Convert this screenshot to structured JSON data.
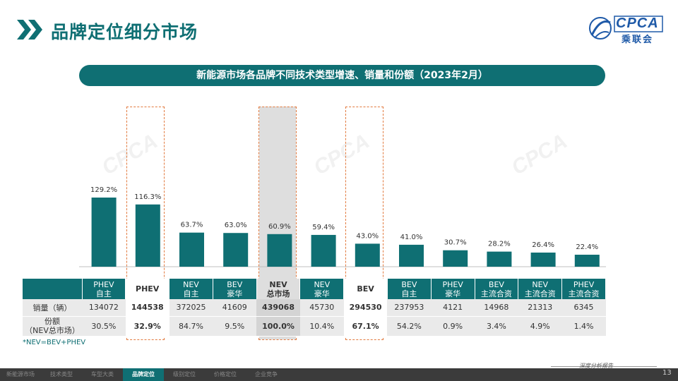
{
  "header": {
    "title": "品牌定位细分市场",
    "logo_text": "CPCA",
    "logo_sub": "乘联会"
  },
  "subtitle": "新能源市场各品牌不同技术类型增速、销量和份额（2023年2月）",
  "colors": {
    "primary": "#0f6f73",
    "highlight_dash": "#e27a3f",
    "highlight_gray": "#dedede",
    "logo_blue": "#1f5aa8"
  },
  "chart_data": {
    "type": "bar",
    "categories": [
      "PHEV自主",
      "PHEV",
      "NEV自主",
      "BEV豪华",
      "NEV总市场",
      "NEV豪华",
      "BEV",
      "BEV自主",
      "PHEV豪华",
      "BEV主流合资",
      "NEV主流合资",
      "PHEV主流合资"
    ],
    "values": [
      129.2,
      116.3,
      63.7,
      63.0,
      60.9,
      59.4,
      43.0,
      41.0,
      30.7,
      28.2,
      26.4,
      22.4
    ],
    "value_labels": [
      "129.2%",
      "116.3%",
      "63.7%",
      "63.0%",
      "60.9%",
      "59.4%",
      "43.0%",
      "41.0%",
      "30.7%",
      "28.2%",
      "26.4%",
      "22.4%"
    ],
    "ylim": [
      0,
      140
    ],
    "title": "",
    "xlabel": "",
    "ylabel": ""
  },
  "table": {
    "columns": [
      {
        "line1": "PHEV",
        "line2": "自主",
        "style": ""
      },
      {
        "line1": "PHEV",
        "line2": "",
        "style": "hl"
      },
      {
        "line1": "NEV",
        "line2": "自主",
        "style": ""
      },
      {
        "line1": "BEV",
        "line2": "豪华",
        "style": ""
      },
      {
        "line1": "NEV",
        "line2": "总市场",
        "style": "hl-gray"
      },
      {
        "line1": "NEV",
        "line2": "豪华",
        "style": ""
      },
      {
        "line1": "BEV",
        "line2": "",
        "style": "hl"
      },
      {
        "line1": "BEV",
        "line2": "自主",
        "style": ""
      },
      {
        "line1": "PHEV",
        "line2": "豪华",
        "style": ""
      },
      {
        "line1": "BEV",
        "line2": "主流合资",
        "style": ""
      },
      {
        "line1": "NEV",
        "line2": "主流合资",
        "style": ""
      },
      {
        "line1": "PHEV",
        "line2": "主流合资",
        "style": ""
      }
    ],
    "rows": [
      {
        "label": "销量（辆）",
        "label2": "",
        "values": [
          "134072",
          "144538",
          "372025",
          "41609",
          "439068",
          "45730",
          "294530",
          "237953",
          "4121",
          "14968",
          "21313",
          "6345"
        ]
      },
      {
        "label": "份额",
        "label2": "（NEV总市场）",
        "values": [
          "30.5%",
          "32.9%",
          "84.7%",
          "9.5%",
          "100.0%",
          "10.4%",
          "67.1%",
          "54.2%",
          "0.9%",
          "3.4%",
          "4.9%",
          "1.4%"
        ]
      }
    ]
  },
  "note": "*NEV=BEV+PHEV",
  "footer": {
    "nav": [
      {
        "label": "新能源市场",
        "active": false
      },
      {
        "label": "技术类型",
        "active": false
      },
      {
        "label": "车型大类",
        "active": false
      },
      {
        "label": "品牌定位",
        "active": true
      },
      {
        "label": "级别定位",
        "active": false
      },
      {
        "label": "价格定位",
        "active": false
      },
      {
        "label": "企业竞争",
        "active": false
      }
    ],
    "report_tag": "深度分析报告",
    "page_number": "13"
  }
}
